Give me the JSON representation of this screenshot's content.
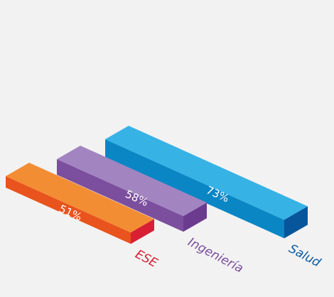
{
  "chart_data": {
    "type": "bar",
    "style": "3d-box",
    "categories": [
      "ESE",
      "Ingeniería",
      "Salud"
    ],
    "values": [
      51,
      58,
      73
    ],
    "value_labels": [
      "51%",
      "58%",
      "73%"
    ],
    "unit": "%",
    "title": "",
    "xlabel": "",
    "ylabel": "",
    "grid": false,
    "legend": "none",
    "colors": {
      "ESE": {
        "front": "#e9531d",
        "top": "#f28d34",
        "side": "#d81f33",
        "label": "#d81f33"
      },
      "Ingeniería": {
        "front": "#7b4f9d",
        "top": "#a284c0",
        "side": "#6a3b8f",
        "label": "#7b4f9d"
      },
      "Salud": {
        "front": "#0b86c5",
        "top": "#37b2e5",
        "side": "#07559a",
        "label": "#0b5aa0"
      }
    },
    "background": "#f2f2f2"
  }
}
